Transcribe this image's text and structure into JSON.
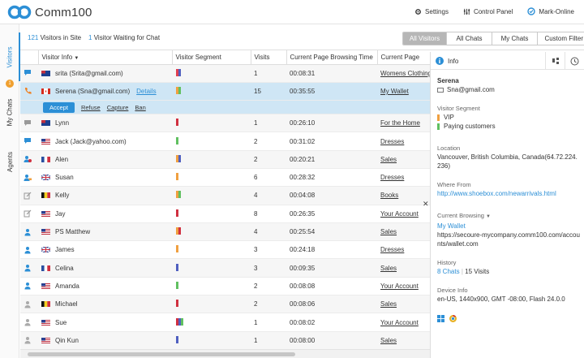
{
  "app": {
    "title": "Comm100"
  },
  "top_actions": [
    {
      "label": "Settings",
      "icon": "gear-icon"
    },
    {
      "label": "Control Panel",
      "icon": "sliders-icon"
    },
    {
      "label": "Mark-Online",
      "icon": "online-check-icon"
    }
  ],
  "side_tabs": {
    "visitors": "Visitors",
    "my_chats": "My Chats",
    "my_chats_badge": "1",
    "agents": "Agents"
  },
  "summary": {
    "visitors_count": "121",
    "visitors_text": "Visitors in Site",
    "waiting_count": "1",
    "waiting_text": "Visitor Waiting for Chat"
  },
  "filters": [
    "All Visitors",
    "All Chats",
    "My Chats",
    "Custom Filter"
  ],
  "table": {
    "columns": [
      "Visitor Info",
      "Visitor Segment",
      "Visits",
      "Current Page Browsing Time",
      "Current Page"
    ],
    "rows": [
      {
        "icon": "chat-bubble-icon",
        "flag": "au",
        "name": "srita (Srita@gmail.com)",
        "segments": [
          "#e04050",
          "#5060c0"
        ],
        "visits": "1",
        "time": "00:08:31",
        "page": "Womens Clothing"
      },
      {
        "icon": "phone-icon",
        "flag": "ca",
        "name": "Serena (Sna@gmail.com)",
        "details": "Details",
        "segments": [
          "#f0a040",
          "#60c060"
        ],
        "visits": "15",
        "time": "00:35:55",
        "page": "My Wallet",
        "selected": true
      },
      {
        "icon": "chat-bubble-gray-icon",
        "flag": "au",
        "name": "Lynn",
        "segments": [
          "#d03040"
        ],
        "visits": "1",
        "time": "00:26:10",
        "page": "For the Home"
      },
      {
        "icon": "chat-bubble-icon",
        "flag": "us",
        "name": "Jack (Jack@yahoo.com)",
        "segments": [
          "#60c060"
        ],
        "visits": "2",
        "time": "00:31:02",
        "page": "Dresses"
      },
      {
        "icon": "person-alert-icon",
        "flag": "fr",
        "name": "Alen",
        "segments": [
          "#f0a040",
          "#5060c0"
        ],
        "visits": "2",
        "time": "00:20:21",
        "page": "Sales"
      },
      {
        "icon": "person-chat-icon",
        "flag": "gb",
        "name": "Susan",
        "segments": [
          "#f0a040"
        ],
        "visits": "6",
        "time": "00:28:32",
        "page": "Dresses"
      },
      {
        "icon": "edit-icon",
        "flag": "be",
        "name": "Kelly",
        "segments": [
          "#f0a040",
          "#60c060"
        ],
        "visits": "4",
        "time": "00:04:08",
        "page": "Books"
      },
      {
        "icon": "edit-icon",
        "flag": "us",
        "name": "Jay",
        "segments": [
          "#d03040"
        ],
        "visits": "8",
        "time": "00:26:35",
        "page": "Your Account"
      },
      {
        "icon": "person-blue-icon",
        "flag": "us",
        "name": "PS Matthew",
        "segments": [
          "#f0a040",
          "#d03040"
        ],
        "visits": "4",
        "time": "00:25:54",
        "page": "Sales"
      },
      {
        "icon": "person-blue-icon",
        "flag": "gb",
        "name": "James",
        "segments": [
          "#f0a040"
        ],
        "visits": "3",
        "time": "00:24:18",
        "page": "Dresses"
      },
      {
        "icon": "person-blue-icon",
        "flag": "fr",
        "name": "Celina",
        "segments": [
          "#5060c0"
        ],
        "visits": "3",
        "time": "00:09:35",
        "page": "Sales"
      },
      {
        "icon": "person-blue-icon",
        "flag": "us",
        "name": "Amanda",
        "segments": [
          "#60c060"
        ],
        "visits": "2",
        "time": "00:08:08",
        "page": "Your Account"
      },
      {
        "icon": "person-gray-icon",
        "flag": "be",
        "name": "Michael",
        "segments": [
          "#d03040"
        ],
        "visits": "2",
        "time": "00:08:06",
        "page": "Sales"
      },
      {
        "icon": "person-gray-icon",
        "flag": "us",
        "name": "Sue",
        "segments": [
          "#d03040",
          "#5060c0",
          "#60c060"
        ],
        "visits": "1",
        "time": "00:08:02",
        "page": "Your Account"
      },
      {
        "icon": "person-gray-icon",
        "flag": "us",
        "name": "Qin Kun",
        "segments": [
          "#5060c0"
        ],
        "visits": "1",
        "time": "00:08:00",
        "page": "Sales"
      }
    ],
    "selected_actions": {
      "accept": "Accept",
      "refuse": "Refuse",
      "capture": "Capture",
      "ban": "Ban"
    }
  },
  "info_panel": {
    "title": "Info",
    "name": "Serena",
    "email": "Sna@gmail.com",
    "segment_label": "Visitor Segment",
    "segments": [
      {
        "label": "VIP",
        "color": "#f0a040"
      },
      {
        "label": "Paying customers",
        "color": "#60c060"
      }
    ],
    "location_label": "Location",
    "location": "Vancouver, British Columbia, Canada(64.72.224.236)",
    "where_from_label": "Where From",
    "where_from": "http://www.shoebox.com/newarrivals.html",
    "browsing_label": "Current Browsing",
    "browsing_title": "My Wallet",
    "browsing_url": "https://secoure-mycompany.comm100.com/accounts/wallet.com",
    "history_label": "History",
    "history_chats": "8 Chats",
    "history_visits": "15 Visits",
    "device_label": "Device Info",
    "device": "en-US, 1440x900, GMT -08:00, Flash 24.0.0"
  },
  "colors": {
    "accent": "#2c8fd6",
    "selected_row": "#cfe6f5"
  }
}
